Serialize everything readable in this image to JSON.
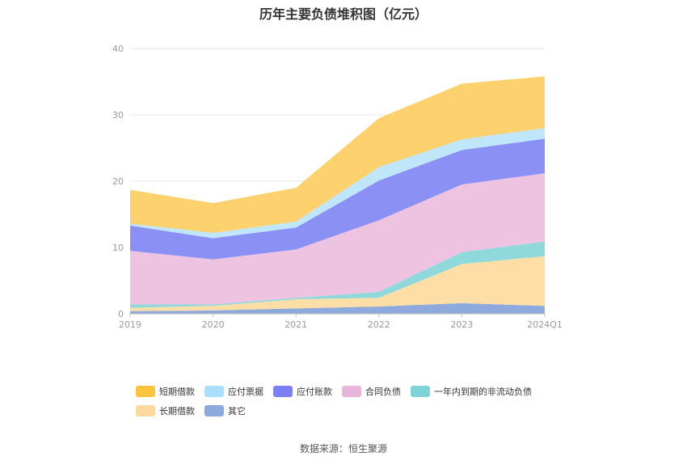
{
  "chart_data": {
    "type": "area",
    "stacked": true,
    "title": "历年主要负债堆积图（亿元）",
    "categories": [
      "2019",
      "2020",
      "2021",
      "2022",
      "2023",
      "2024Q1"
    ],
    "ylim": [
      0,
      40
    ],
    "yticks": [
      "0",
      "10",
      "20",
      "30",
      "40"
    ],
    "grid": true,
    "legend_placement": "bottom",
    "series": [
      {
        "name": "其它",
        "color": "#8eaadc",
        "values": [
          0.4,
          0.5,
          0.8,
          1.1,
          1.6,
          1.2
        ]
      },
      {
        "name": "长期借款",
        "color": "#fddea6",
        "values": [
          0.5,
          0.7,
          1.4,
          1.3,
          5.9,
          7.5
        ]
      },
      {
        "name": "一年内到期的非流动负债",
        "color": "#8fd8dc",
        "values": [
          0.5,
          0.2,
          0.2,
          0.9,
          1.8,
          2.2
        ]
      },
      {
        "name": "合同负债",
        "color": "#eec3e1",
        "values": [
          8.1,
          6.8,
          7.3,
          10.8,
          10.2,
          10.3
        ]
      },
      {
        "name": "应付账款",
        "color": "#8a90f4",
        "values": [
          3.8,
          3.2,
          3.3,
          6.0,
          5.2,
          5.2
        ]
      },
      {
        "name": "应付票据",
        "color": "#bfe6fb",
        "values": [
          0.3,
          0.8,
          0.9,
          2.0,
          1.6,
          1.6
        ]
      },
      {
        "name": "短期借款",
        "color": "#fdd16e",
        "values": [
          5.1,
          4.5,
          5.1,
          7.4,
          8.4,
          7.8
        ]
      }
    ]
  },
  "legend": {
    "rows": [
      [
        {
          "label": "短期借款",
          "color": "#fbc33f"
        },
        {
          "label": "应付票据",
          "color": "#a9dffa"
        },
        {
          "label": "应付账款",
          "color": "#7b7ff3"
        },
        {
          "label": "合同负债",
          "color": "#e8b5da"
        },
        {
          "label": "一年内到期的非流动负债",
          "color": "#7fd3d6"
        }
      ],
      [
        {
          "label": "长期借款",
          "color": "#fdd9a0"
        },
        {
          "label": "其它",
          "color": "#8ea9db"
        }
      ]
    ]
  },
  "source": "数据来源：恒生聚源"
}
